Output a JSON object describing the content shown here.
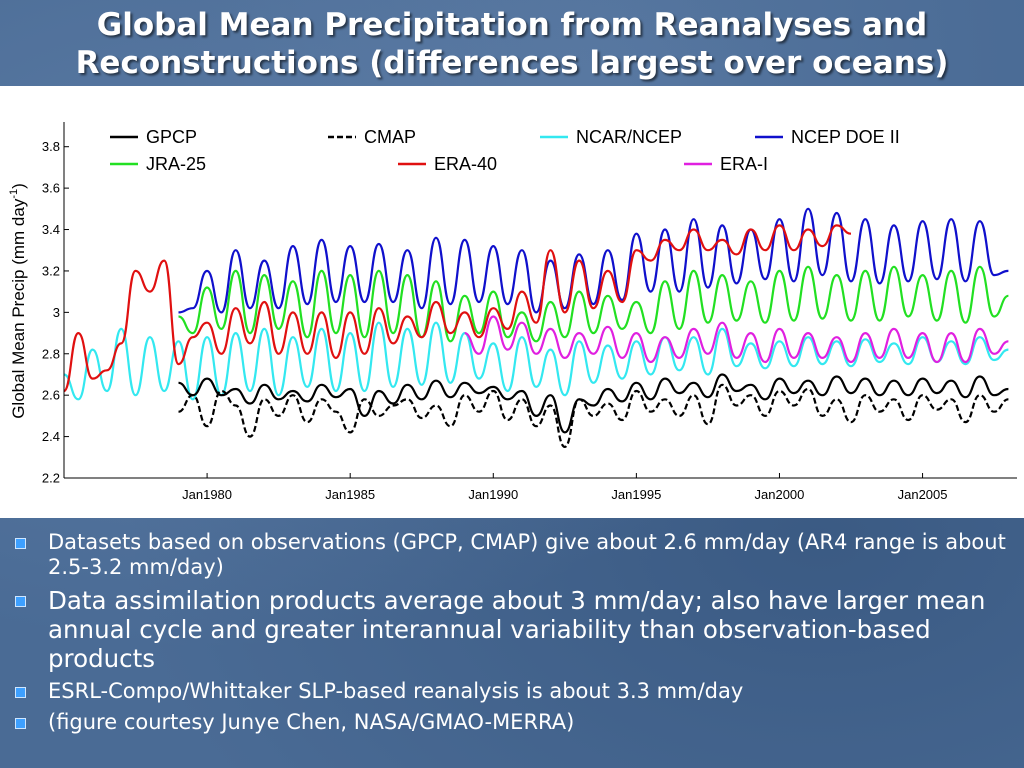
{
  "title": {
    "line1": "Global Mean Precipitation from Reanalyses and",
    "line2": "Reconstructions (differences largest over oceans)"
  },
  "bullets": [
    "Datasets based on observations (GPCP, CMAP) give about 2.6 mm/day (AR4 range is about 2.5-3.2 mm/day)",
    "Data assimilation products average about 3 mm/day; also have larger mean annual cycle and greater interannual variability than observation-based products",
    "ESRL-Compo/Whittaker SLP-based reanalysis is about 3.3 mm/day",
    "(figure courtesy Junye Chen, NASA/GMAO-MERRA)"
  ],
  "colors": {
    "slide_background": "#4a6b95",
    "bullet_marker": "#3ea0ff"
  },
  "chart_data": {
    "type": "line",
    "ylabel": "Global Mean Precip (mm day",
    "ylabel_sup": "-1",
    "ylabel_close": ")",
    "xlabel": "",
    "xlim": [
      1975.0,
      2008.3
    ],
    "ylim": [
      2.2,
      3.9
    ],
    "xticks": [
      1980,
      1985,
      1990,
      1995,
      2000,
      2005
    ],
    "xtick_labels": [
      "Jan1980",
      "Jan1985",
      "Jan1990",
      "Jan1995",
      "Jan2000",
      "Jan2005"
    ],
    "yticks": [
      2.2,
      2.4,
      2.6,
      2.8,
      3.0,
      3.2,
      3.4,
      3.6,
      3.8
    ],
    "ytick_labels": [
      "2.2",
      "2.4",
      "2.6",
      "2.8",
      "3",
      "3.2",
      "3.4",
      "3.6",
      "3.8"
    ],
    "grid": false,
    "legend_placement": "top, inside plot",
    "series": [
      {
        "name": "GPCP",
        "color": "#000000",
        "dash": "solid",
        "x": [
          1979.0,
          1979.5,
          1980.0,
          1980.5,
          1981.0,
          1981.5,
          1982.0,
          1982.5,
          1983.0,
          1983.5,
          1984.0,
          1984.5,
          1985.0,
          1985.5,
          1986.0,
          1986.5,
          1987.0,
          1987.5,
          1988.0,
          1988.5,
          1989.0,
          1989.5,
          1990.0,
          1990.5,
          1991.0,
          1991.5,
          1992.0,
          1992.5,
          1993.0,
          1993.5,
          1994.0,
          1994.5,
          1995.0,
          1995.5,
          1996.0,
          1996.5,
          1997.0,
          1997.5,
          1998.0,
          1998.5,
          1999.0,
          1999.5,
          2000.0,
          2000.5,
          2001.0,
          2001.5,
          2002.0,
          2002.5,
          2003.0,
          2003.5,
          2004.0,
          2004.5,
          2005.0,
          2005.5,
          2006.0,
          2006.5,
          2007.0,
          2007.5,
          2008.0
        ],
        "y": [
          2.66,
          2.6,
          2.68,
          2.6,
          2.63,
          2.56,
          2.65,
          2.58,
          2.62,
          2.57,
          2.65,
          2.59,
          2.63,
          2.5,
          2.62,
          2.56,
          2.65,
          2.58,
          2.67,
          2.59,
          2.66,
          2.61,
          2.64,
          2.58,
          2.62,
          2.5,
          2.6,
          2.42,
          2.58,
          2.55,
          2.63,
          2.57,
          2.66,
          2.58,
          2.68,
          2.61,
          2.66,
          2.59,
          2.7,
          2.62,
          2.65,
          2.58,
          2.68,
          2.61,
          2.67,
          2.6,
          2.69,
          2.61,
          2.68,
          2.6,
          2.67,
          2.6,
          2.68,
          2.61,
          2.67,
          2.59,
          2.69,
          2.6,
          2.63
        ]
      },
      {
        "name": "CMAP",
        "color": "#000000",
        "dash": "dashed",
        "x": [
          1979.0,
          1979.5,
          1980.0,
          1980.5,
          1981.0,
          1981.5,
          1982.0,
          1982.5,
          1983.0,
          1983.5,
          1984.0,
          1984.5,
          1985.0,
          1985.5,
          1986.0,
          1986.5,
          1987.0,
          1987.5,
          1988.0,
          1988.5,
          1989.0,
          1989.5,
          1990.0,
          1990.5,
          1991.0,
          1991.5,
          1992.0,
          1992.5,
          1993.0,
          1993.5,
          1994.0,
          1994.5,
          1995.0,
          1995.5,
          1996.0,
          1996.5,
          1997.0,
          1997.5,
          1998.0,
          1998.5,
          1999.0,
          1999.5,
          2000.0,
          2000.5,
          2001.0,
          2001.5,
          2002.0,
          2002.5,
          2003.0,
          2003.5,
          2004.0,
          2004.5,
          2005.0,
          2005.5,
          2006.0,
          2006.5,
          2007.0,
          2007.5,
          2008.0
        ],
        "y": [
          2.52,
          2.6,
          2.45,
          2.62,
          2.55,
          2.4,
          2.58,
          2.5,
          2.6,
          2.47,
          2.58,
          2.52,
          2.42,
          2.58,
          2.5,
          2.55,
          2.58,
          2.49,
          2.55,
          2.45,
          2.6,
          2.52,
          2.62,
          2.48,
          2.58,
          2.45,
          2.55,
          2.35,
          2.58,
          2.5,
          2.56,
          2.48,
          2.62,
          2.52,
          2.58,
          2.5,
          2.6,
          2.46,
          2.65,
          2.55,
          2.6,
          2.5,
          2.62,
          2.55,
          2.63,
          2.5,
          2.58,
          2.47,
          2.6,
          2.52,
          2.58,
          2.48,
          2.6,
          2.53,
          2.58,
          2.47,
          2.6,
          2.52,
          2.58
        ]
      },
      {
        "name": "NCAR/NCEP",
        "color": "#33e8f0",
        "dash": "solid",
        "x": [
          1975.0,
          1975.5,
          1976.0,
          1976.5,
          1977.0,
          1977.5,
          1978.0,
          1978.5,
          1979.0,
          1979.5,
          1980.0,
          1980.5,
          1981.0,
          1981.5,
          1982.0,
          1982.5,
          1983.0,
          1983.5,
          1984.0,
          1984.5,
          1985.0,
          1985.5,
          1986.0,
          1986.5,
          1987.0,
          1987.5,
          1988.0,
          1988.5,
          1989.0,
          1989.5,
          1990.0,
          1990.5,
          1991.0,
          1991.5,
          1992.0,
          1992.5,
          1993.0,
          1993.5,
          1994.0,
          1994.5,
          1995.0,
          1995.5,
          1996.0,
          1996.5,
          1997.0,
          1997.5,
          1998.0,
          1998.5,
          1999.0,
          1999.5,
          2000.0,
          2000.5,
          2001.0,
          2001.5,
          2002.0,
          2002.5,
          2003.0,
          2003.5,
          2004.0,
          2004.5,
          2005.0,
          2005.5,
          2006.0,
          2006.5,
          2007.0,
          2007.5,
          2008.0
        ],
        "y": [
          2.7,
          2.58,
          2.82,
          2.62,
          2.92,
          2.6,
          2.88,
          2.62,
          2.86,
          2.58,
          2.88,
          2.6,
          2.9,
          2.62,
          2.92,
          2.6,
          2.88,
          2.64,
          2.92,
          2.62,
          2.9,
          2.62,
          2.95,
          2.64,
          2.92,
          2.65,
          2.95,
          2.66,
          2.9,
          2.68,
          2.85,
          2.62,
          2.88,
          2.64,
          2.82,
          2.6,
          2.86,
          2.66,
          2.84,
          2.68,
          2.86,
          2.7,
          2.88,
          2.72,
          2.88,
          2.7,
          2.92,
          2.74,
          2.85,
          2.73,
          2.86,
          2.74,
          2.88,
          2.75,
          2.86,
          2.74,
          2.87,
          2.76,
          2.85,
          2.75,
          2.88,
          2.76,
          2.86,
          2.75,
          2.88,
          2.77,
          2.82
        ]
      },
      {
        "name": "NCEP DOE II",
        "color": "#1010cc",
        "dash": "solid",
        "x": [
          1979.0,
          1979.5,
          1980.0,
          1980.5,
          1981.0,
          1981.5,
          1982.0,
          1982.5,
          1983.0,
          1983.5,
          1984.0,
          1984.5,
          1985.0,
          1985.5,
          1986.0,
          1986.5,
          1987.0,
          1987.5,
          1988.0,
          1988.5,
          1989.0,
          1989.5,
          1990.0,
          1990.5,
          1991.0,
          1991.5,
          1992.0,
          1992.5,
          1993.0,
          1993.5,
          1994.0,
          1994.5,
          1995.0,
          1995.5,
          1996.0,
          1996.5,
          1997.0,
          1997.5,
          1998.0,
          1998.5,
          1999.0,
          1999.5,
          2000.0,
          2000.5,
          2001.0,
          2001.5,
          2002.0,
          2002.5,
          2003.0,
          2003.5,
          2004.0,
          2004.5,
          2005.0,
          2005.5,
          2006.0,
          2006.5,
          2007.0,
          2007.5,
          2008.0
        ],
        "y": [
          3.0,
          3.02,
          3.2,
          3.0,
          3.3,
          3.02,
          3.25,
          3.02,
          3.32,
          3.04,
          3.35,
          3.05,
          3.32,
          3.05,
          3.33,
          3.05,
          3.3,
          3.02,
          3.36,
          3.04,
          3.35,
          3.05,
          3.32,
          3.04,
          3.3,
          3.0,
          3.25,
          3.02,
          3.28,
          3.04,
          3.3,
          3.06,
          3.38,
          3.1,
          3.4,
          3.1,
          3.45,
          3.12,
          3.42,
          3.14,
          3.4,
          3.16,
          3.45,
          3.15,
          3.5,
          3.18,
          3.48,
          3.15,
          3.45,
          3.14,
          3.42,
          3.15,
          3.44,
          3.16,
          3.45,
          3.15,
          3.44,
          3.18,
          3.2
        ]
      },
      {
        "name": "JRA-25",
        "color": "#22e022",
        "dash": "solid",
        "x": [
          1979.0,
          1979.5,
          1980.0,
          1980.5,
          1981.0,
          1981.5,
          1982.0,
          1982.5,
          1983.0,
          1983.5,
          1984.0,
          1984.5,
          1985.0,
          1985.5,
          1986.0,
          1986.5,
          1987.0,
          1987.5,
          1988.0,
          1988.5,
          1989.0,
          1989.5,
          1990.0,
          1990.5,
          1991.0,
          1991.5,
          1992.0,
          1992.5,
          1993.0,
          1993.5,
          1994.0,
          1994.5,
          1995.0,
          1995.5,
          1996.0,
          1996.5,
          1997.0,
          1997.5,
          1998.0,
          1998.5,
          1999.0,
          1999.5,
          2000.0,
          2000.5,
          2001.0,
          2001.5,
          2002.0,
          2002.5,
          2003.0,
          2003.5,
          2004.0,
          2004.5,
          2005.0,
          2005.5,
          2006.0,
          2006.5,
          2007.0,
          2007.5,
          2008.0
        ],
        "y": [
          2.98,
          2.9,
          3.12,
          2.92,
          3.2,
          2.9,
          3.18,
          2.92,
          3.15,
          2.88,
          3.2,
          2.9,
          3.18,
          2.88,
          3.2,
          2.9,
          3.18,
          2.88,
          3.15,
          2.86,
          3.08,
          2.9,
          3.1,
          2.88,
          3.0,
          2.86,
          3.05,
          2.88,
          3.1,
          2.9,
          3.08,
          2.92,
          3.05,
          2.9,
          3.15,
          2.92,
          3.2,
          2.95,
          3.18,
          2.96,
          3.15,
          2.95,
          3.2,
          2.96,
          3.22,
          2.97,
          3.18,
          2.96,
          3.2,
          2.96,
          3.22,
          2.98,
          3.18,
          2.96,
          3.2,
          2.95,
          3.22,
          2.98,
          3.08
        ]
      },
      {
        "name": "ERA-40",
        "color": "#e01010",
        "dash": "solid",
        "x": [
          1975.0,
          1975.5,
          1976.0,
          1976.5,
          1977.0,
          1977.5,
          1978.0,
          1978.5,
          1979.0,
          1979.5,
          1980.0,
          1980.5,
          1981.0,
          1981.5,
          1982.0,
          1982.5,
          1983.0,
          1983.5,
          1984.0,
          1984.5,
          1985.0,
          1985.5,
          1986.0,
          1986.5,
          1987.0,
          1987.5,
          1988.0,
          1988.5,
          1989.0,
          1989.5,
          1990.0,
          1990.5,
          1991.0,
          1991.5,
          1992.0,
          1992.5,
          1993.0,
          1993.5,
          1994.0,
          1994.5,
          1995.0,
          1995.5,
          1996.0,
          1996.5,
          1997.0,
          1997.5,
          1998.0,
          1998.5,
          1999.0,
          1999.5,
          2000.0,
          2000.5,
          2001.0,
          2001.5,
          2002.0,
          2002.5
        ],
        "y": [
          2.62,
          2.9,
          2.68,
          2.72,
          2.85,
          3.2,
          3.1,
          3.25,
          2.75,
          2.88,
          2.95,
          2.8,
          3.02,
          2.85,
          3.05,
          2.8,
          3.0,
          2.8,
          3.0,
          2.78,
          3.0,
          2.8,
          3.02,
          2.85,
          2.98,
          2.88,
          3.05,
          2.9,
          3.0,
          2.88,
          3.02,
          2.92,
          3.1,
          2.95,
          3.3,
          3.0,
          3.25,
          3.02,
          3.2,
          3.05,
          3.3,
          3.25,
          3.35,
          3.3,
          3.4,
          3.3,
          3.35,
          3.28,
          3.4,
          3.3,
          3.42,
          3.3,
          3.4,
          3.32,
          3.42,
          3.38
        ]
      },
      {
        "name": "ERA-I",
        "color": "#e020e0",
        "dash": "solid",
        "x": [
          1989.0,
          1989.5,
          1990.0,
          1990.5,
          1991.0,
          1991.5,
          1992.0,
          1992.5,
          1993.0,
          1993.5,
          1994.0,
          1994.5,
          1995.0,
          1995.5,
          1996.0,
          1996.5,
          1997.0,
          1997.5,
          1998.0,
          1998.5,
          1999.0,
          1999.5,
          2000.0,
          2000.5,
          2001.0,
          2001.5,
          2002.0,
          2002.5,
          2003.0,
          2003.5,
          2004.0,
          2004.5,
          2005.0,
          2005.5,
          2006.0,
          2006.5,
          2007.0,
          2007.5,
          2008.0
        ],
        "y": [
          2.9,
          2.8,
          2.98,
          2.82,
          2.95,
          2.8,
          2.92,
          2.78,
          2.9,
          2.8,
          2.93,
          2.78,
          2.9,
          2.76,
          2.88,
          2.78,
          2.92,
          2.8,
          2.95,
          2.78,
          2.9,
          2.76,
          2.92,
          2.78,
          2.9,
          2.78,
          2.88,
          2.76,
          2.9,
          2.78,
          2.92,
          2.78,
          2.9,
          2.76,
          2.9,
          2.76,
          2.92,
          2.8,
          2.86
        ]
      }
    ]
  }
}
